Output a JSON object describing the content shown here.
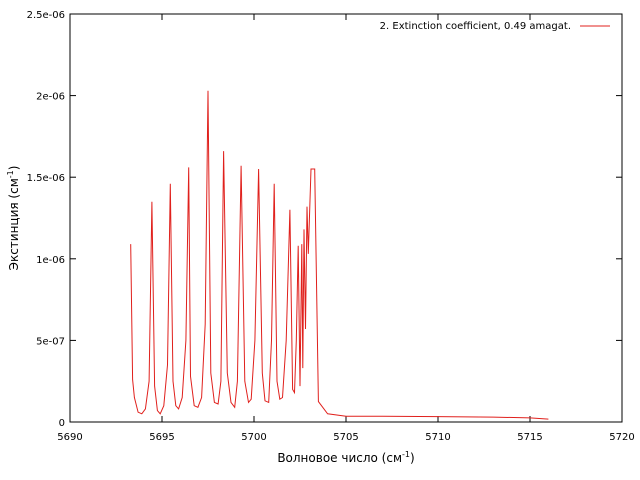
{
  "chart_data": {
    "type": "line",
    "xlabel": "Волновое число (см",
    "xlabel_sup": "-1",
    "xlabel_end": ")",
    "ylabel": "Экстинция (см",
    "ylabel_sup": "-1",
    "ylabel_end": ")",
    "xlim": [
      5690,
      5720
    ],
    "ylim": [
      0,
      2.5e-06
    ],
    "xticks": [
      5690,
      5695,
      5700,
      5705,
      5710,
      5715,
      5720
    ],
    "xtick_labels": [
      "5690",
      "5695",
      "5700",
      "5705",
      "5710",
      "5715",
      "5720"
    ],
    "yticks": [
      0,
      5e-07,
      1e-06,
      1.5e-06,
      2e-06,
      2.5e-06
    ],
    "ytick_labels": [
      "0",
      "5e-07",
      "1e-06",
      "1.5e-06",
      "2e-06",
      "2.5e-06"
    ],
    "grid": false,
    "legend_position": "top-right",
    "series": [
      {
        "name": "2. Extinction coefficient, 0.49 amagat.",
        "color": "#e0201c",
        "x": [
          5693.3,
          5693.4,
          5693.5,
          5693.7,
          5693.9,
          5694.1,
          5694.3,
          5694.45,
          5694.6,
          5694.75,
          5694.9,
          5695.1,
          5695.3,
          5695.45,
          5695.6,
          5695.75,
          5695.9,
          5696.1,
          5696.3,
          5696.45,
          5696.55,
          5696.75,
          5696.95,
          5697.15,
          5697.35,
          5697.5,
          5697.65,
          5697.85,
          5698.05,
          5698.2,
          5698.35,
          5698.55,
          5698.75,
          5698.95,
          5699.1,
          5699.3,
          5699.5,
          5699.7,
          5699.85,
          5700.05,
          5700.25,
          5700.45,
          5700.6,
          5700.8,
          5700.95,
          5701.1,
          5701.25,
          5701.4,
          5701.55,
          5701.75,
          5701.95,
          5702.1,
          5702.2,
          5702.3,
          5702.4,
          5702.5,
          5702.6,
          5702.65,
          5702.72,
          5702.8,
          5702.88,
          5702.95,
          5703.1,
          5703.3,
          5703.5,
          5704,
          5705,
          5707,
          5710,
          5713,
          5715,
          5716
        ],
        "y": [
          1.09e-06,
          2.6e-07,
          1.5e-07,
          6e-08,
          5e-08,
          8e-08,
          2.5e-07,
          1.35e-06,
          2.2e-07,
          7e-08,
          5e-08,
          1e-07,
          3.5e-07,
          1.46e-06,
          2.5e-07,
          1e-07,
          8e-08,
          1.5e-07,
          5e-07,
          1.56e-06,
          2.8e-07,
          1e-07,
          9e-08,
          1.5e-07,
          6e-07,
          2.03e-06,
          3e-07,
          1.2e-07,
          1.1e-07,
          2.5e-07,
          1.66e-06,
          3e-07,
          1.2e-07,
          9e-08,
          2.5e-07,
          1.57e-06,
          2.5e-07,
          1.2e-07,
          1.4e-07,
          5e-07,
          1.55e-06,
          3e-07,
          1.3e-07,
          1.2e-07,
          5e-07,
          1.46e-06,
          2.5e-07,
          1.4e-07,
          1.5e-07,
          5e-07,
          1.3e-06,
          2e-07,
          1.8e-07,
          5e-07,
          1.08e-06,
          2.2e-07,
          1.09e-06,
          3.3e-07,
          1.18e-06,
          5.7e-07,
          1.32e-06,
          1.03e-06,
          1.55e-06,
          1.55e-06,
          1.25e-07,
          5e-08,
          3.5e-08,
          3.5e-08,
          3.3e-08,
          3e-08,
          2.5e-08,
          1.8e-08
        ]
      }
    ]
  }
}
